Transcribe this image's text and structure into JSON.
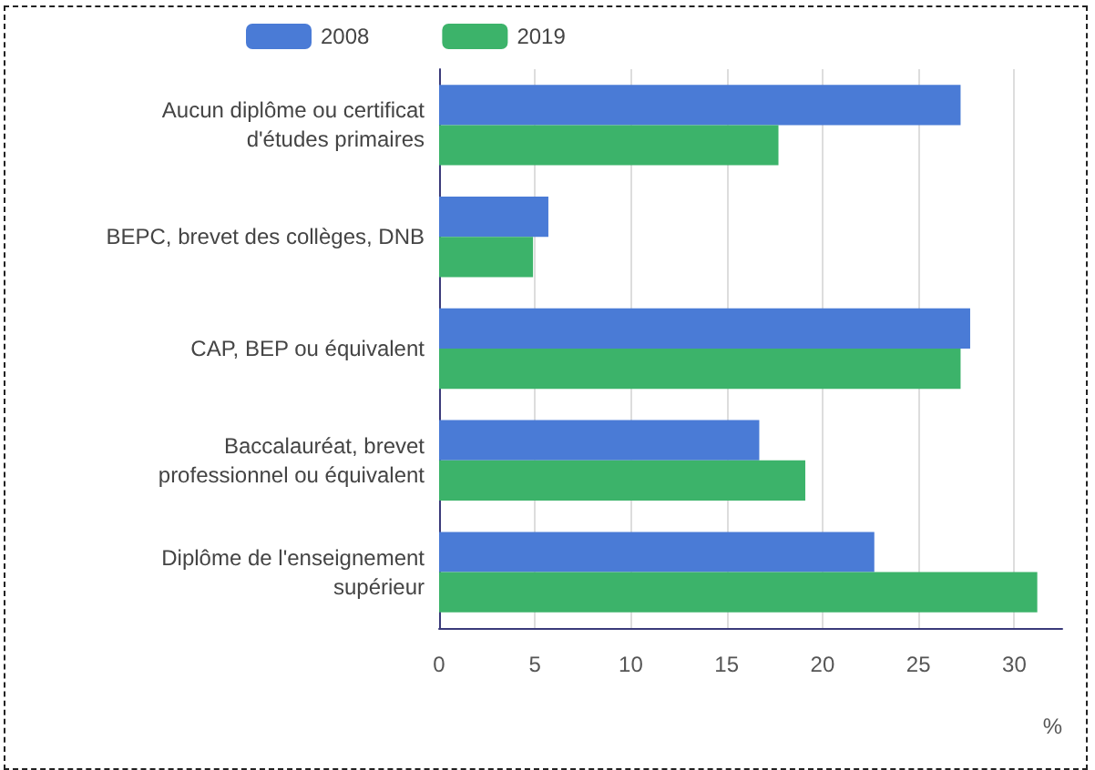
{
  "chart_data": {
    "type": "bar",
    "orientation": "horizontal",
    "categories": [
      "Aucun diplôme ou certificat\nd'études primaires",
      "BEPC, brevet des collèges, DNB",
      "CAP, BEP ou équivalent",
      "Baccalauréat, brevet\nprofessionnel ou équivalent",
      "Diplôme de l'enseignement\nsupérieur"
    ],
    "series": [
      {
        "name": "2008",
        "color": "#4a7bd6",
        "values": [
          27.2,
          5.7,
          27.7,
          16.7,
          22.7
        ]
      },
      {
        "name": "2019",
        "color": "#3cb36a",
        "values": [
          17.7,
          4.9,
          27.2,
          19.1,
          31.2
        ]
      }
    ],
    "xlim": [
      0,
      32.5
    ],
    "xticks": [
      0,
      5,
      10,
      15,
      20,
      25,
      30
    ],
    "xlabel": "%",
    "grid": "x",
    "legend": "top"
  }
}
